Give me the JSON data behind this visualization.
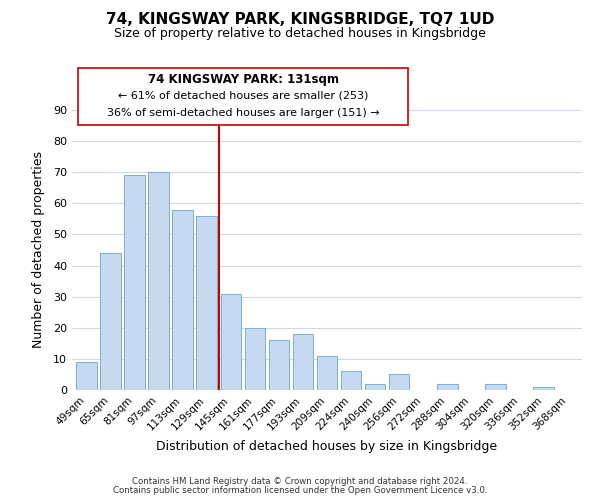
{
  "title": "74, KINGSWAY PARK, KINGSBRIDGE, TQ7 1UD",
  "subtitle": "Size of property relative to detached houses in Kingsbridge",
  "xlabel": "Distribution of detached houses by size in Kingsbridge",
  "ylabel": "Number of detached properties",
  "bar_color": "#c5d9f1",
  "bar_edge_color": "#7bafd4",
  "categories": [
    "49sqm",
    "65sqm",
    "81sqm",
    "97sqm",
    "113sqm",
    "129sqm",
    "145sqm",
    "161sqm",
    "177sqm",
    "193sqm",
    "209sqm",
    "224sqm",
    "240sqm",
    "256sqm",
    "272sqm",
    "288sqm",
    "304sqm",
    "320sqm",
    "336sqm",
    "352sqm",
    "368sqm"
  ],
  "values": [
    9,
    44,
    69,
    70,
    58,
    56,
    31,
    20,
    16,
    18,
    11,
    6,
    2,
    5,
    0,
    2,
    0,
    2,
    0,
    1,
    0
  ],
  "ylim": [
    0,
    90
  ],
  "yticks": [
    0,
    10,
    20,
    30,
    40,
    50,
    60,
    70,
    80,
    90
  ],
  "vline_x": 5.5,
  "vline_color": "#cc0000",
  "annotation_title": "74 KINGSWAY PARK: 131sqm",
  "annotation_line1": "← 61% of detached houses are smaller (253)",
  "annotation_line2": "36% of semi-detached houses are larger (151) →",
  "footer1": "Contains HM Land Registry data © Crown copyright and database right 2024.",
  "footer2": "Contains public sector information licensed under the Open Government Licence v3.0.",
  "background_color": "#ffffff",
  "grid_color": "#d0d8e8"
}
